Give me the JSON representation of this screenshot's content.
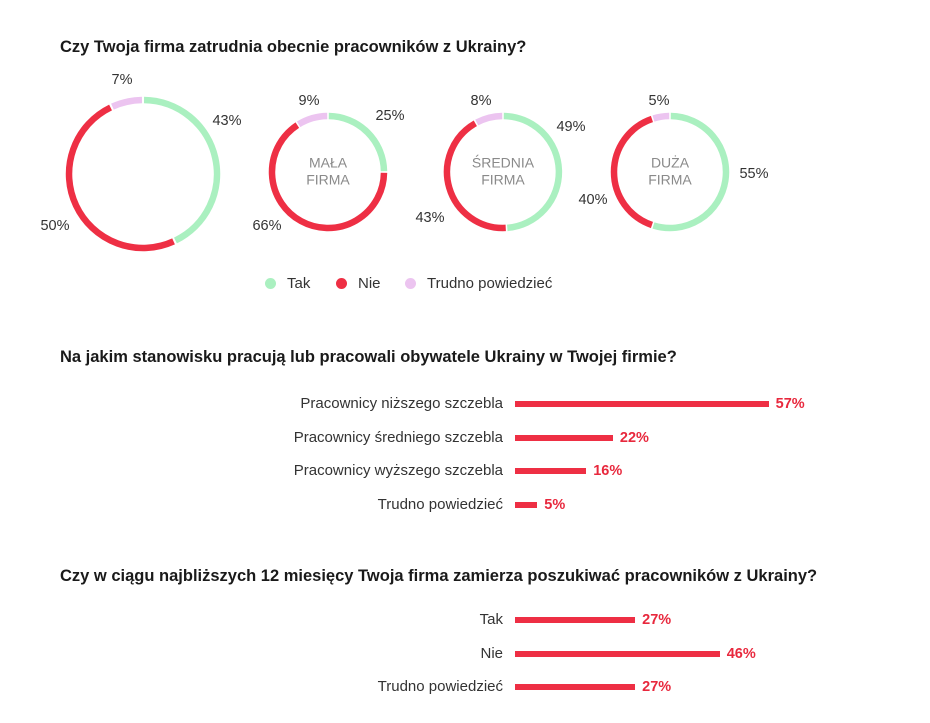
{
  "colors": {
    "tak": "#aaf0c0",
    "nie": "#ee2f44",
    "trudno": "#ecc4f0",
    "center_text": "#8a8a8a"
  },
  "q1": {
    "title": "Czy Twoja firma zatrudnia obecnie pracowników z Ukrainy?",
    "legend": [
      "Tak",
      "Nie",
      "Trudno powiedzieć"
    ]
  },
  "q2": {
    "title": "Na jakim stanowisku pracują lub pracowali obywatele Ukrainy w Twojej firmie?"
  },
  "q3": {
    "title": "Czy w ciągu najbliższych 12 miesięcy Twoja firma zamierza poszukiwać pracowników z Ukrainy?"
  },
  "chart_data": [
    {
      "type": "pie",
      "variant": "donut",
      "title": "",
      "center_label": "",
      "categories": [
        "Tak",
        "Nie",
        "Trudno powiedzieć"
      ],
      "values": [
        43,
        50,
        7
      ],
      "value_labels": [
        "43%",
        "50%",
        "7%"
      ]
    },
    {
      "type": "pie",
      "variant": "donut",
      "title": "",
      "center_label": "MAŁA FIRMA",
      "center_lines": [
        "MAŁA",
        "FIRMA"
      ],
      "categories": [
        "Tak",
        "Nie",
        "Trudno powiedzieć"
      ],
      "values": [
        25,
        66,
        9
      ],
      "value_labels": [
        "25%",
        "66%",
        "9%"
      ]
    },
    {
      "type": "pie",
      "variant": "donut",
      "title": "",
      "center_label": "ŚREDNIA FIRMA",
      "center_lines": [
        "ŚREDNIA",
        "FIRMA"
      ],
      "categories": [
        "Tak",
        "Nie",
        "Trudno powiedzieć"
      ],
      "values": [
        49,
        43,
        8
      ],
      "value_labels": [
        "49%",
        "43%",
        "8%"
      ]
    },
    {
      "type": "pie",
      "variant": "donut",
      "title": "",
      "center_label": "DUŻA FIRMA",
      "center_lines": [
        "DUŻA",
        "FIRMA"
      ],
      "categories": [
        "Tak",
        "Nie",
        "Trudno powiedzieć"
      ],
      "values": [
        55,
        40,
        5
      ],
      "value_labels": [
        "55%",
        "40%",
        "5%"
      ]
    },
    {
      "type": "bar",
      "orientation": "horizontal",
      "title": "Na jakim stanowisku pracują lub pracowali obywatele Ukrainy w Twojej firmie?",
      "categories": [
        "Pracownicy niższego szczebla",
        "Pracownicy średniego szczebla",
        "Pracownicy wyższego szczebla",
        "Trudno powiedzieć"
      ],
      "values": [
        57,
        22,
        16,
        5
      ],
      "value_labels": [
        "57%",
        "22%",
        "16%",
        "5%"
      ],
      "xlim": [
        0,
        100
      ]
    },
    {
      "type": "bar",
      "orientation": "horizontal",
      "title": "Czy w ciągu najbliższych 12 miesięcy Twoja firma zamierza poszukiwać pracowników z Ukrainy?",
      "categories": [
        "Tak",
        "Nie",
        "Trudno powiedzieć"
      ],
      "values": [
        27,
        46,
        27
      ],
      "value_labels": [
        "27%",
        "46%",
        "27%"
      ],
      "xlim": [
        0,
        100
      ]
    }
  ]
}
